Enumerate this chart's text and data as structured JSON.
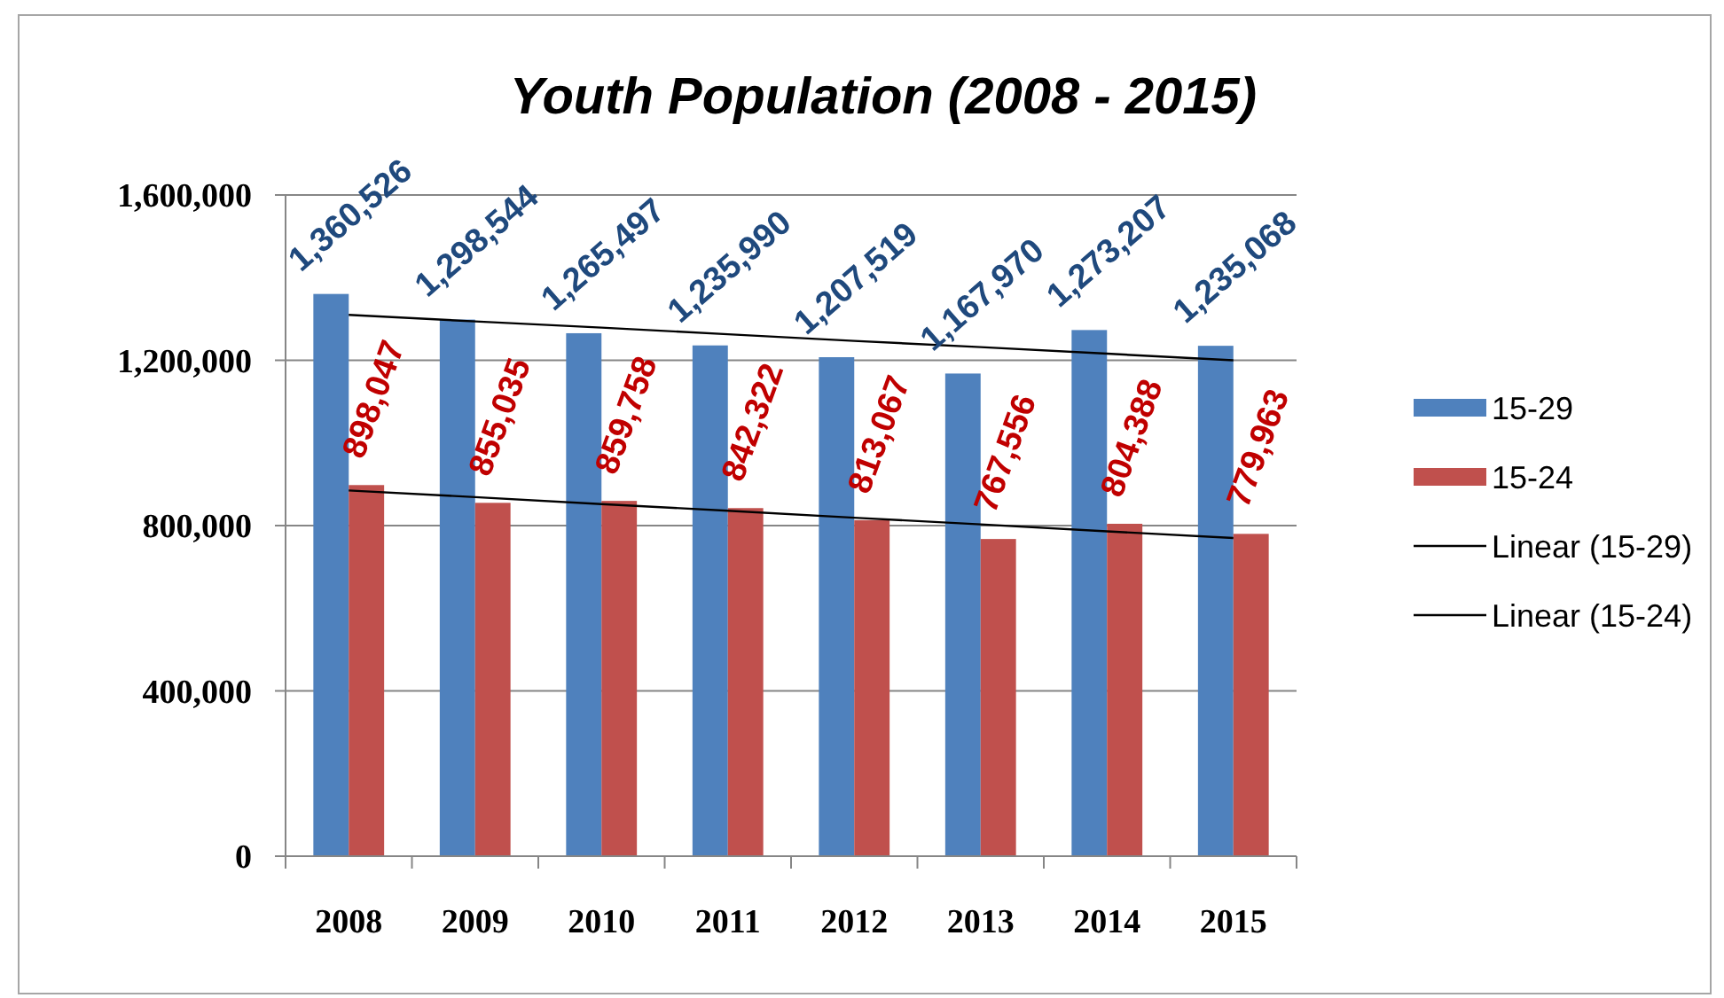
{
  "chart_data": {
    "type": "bar",
    "title": "Youth Population (2008 - 2015)",
    "categories": [
      "2008",
      "2009",
      "2010",
      "2011",
      "2012",
      "2013",
      "2014",
      "2015"
    ],
    "series": [
      {
        "name": "15-29",
        "color": "#4f81bd",
        "values": [
          1360526,
          1298544,
          1265497,
          1235990,
          1207519,
          1167970,
          1273207,
          1235068
        ],
        "value_labels": [
          "1,360,526",
          "1,298,544",
          "1,265,497",
          "1,235,990",
          "1,207,519",
          "1,167,970",
          "1,273,207",
          "1,235,068"
        ]
      },
      {
        "name": "15-24",
        "color": "#c0504d",
        "values": [
          898047,
          855035,
          859758,
          842322,
          813067,
          767556,
          804388,
          779963
        ],
        "value_labels": [
          "898,047",
          "855,035",
          "859,758",
          "842,322",
          "813,067",
          "767,556",
          "804,388",
          "779,963"
        ]
      },
      {
        "name": "Linear (15-29)",
        "type": "line",
        "color": "#000000",
        "values": [
          1310000,
          1294000,
          1279000,
          1263000,
          1247000,
          1232000,
          1216000,
          1200000
        ]
      },
      {
        "name": "Linear (15-24)",
        "type": "line",
        "color": "#000000",
        "values": [
          885000,
          869000,
          852000,
          836000,
          819000,
          803000,
          786000,
          770000
        ]
      }
    ],
    "ylim": [
      0,
      1600000
    ],
    "yticks": [
      {
        "value": 0,
        "label": "0"
      },
      {
        "value": 400000,
        "label": "400,000"
      },
      {
        "value": 800000,
        "label": "800,000"
      },
      {
        "value": 1200000,
        "label": "1,200,000"
      },
      {
        "value": 1600000,
        "label": "1,600,000"
      }
    ],
    "grid": "y",
    "legend": "right"
  }
}
